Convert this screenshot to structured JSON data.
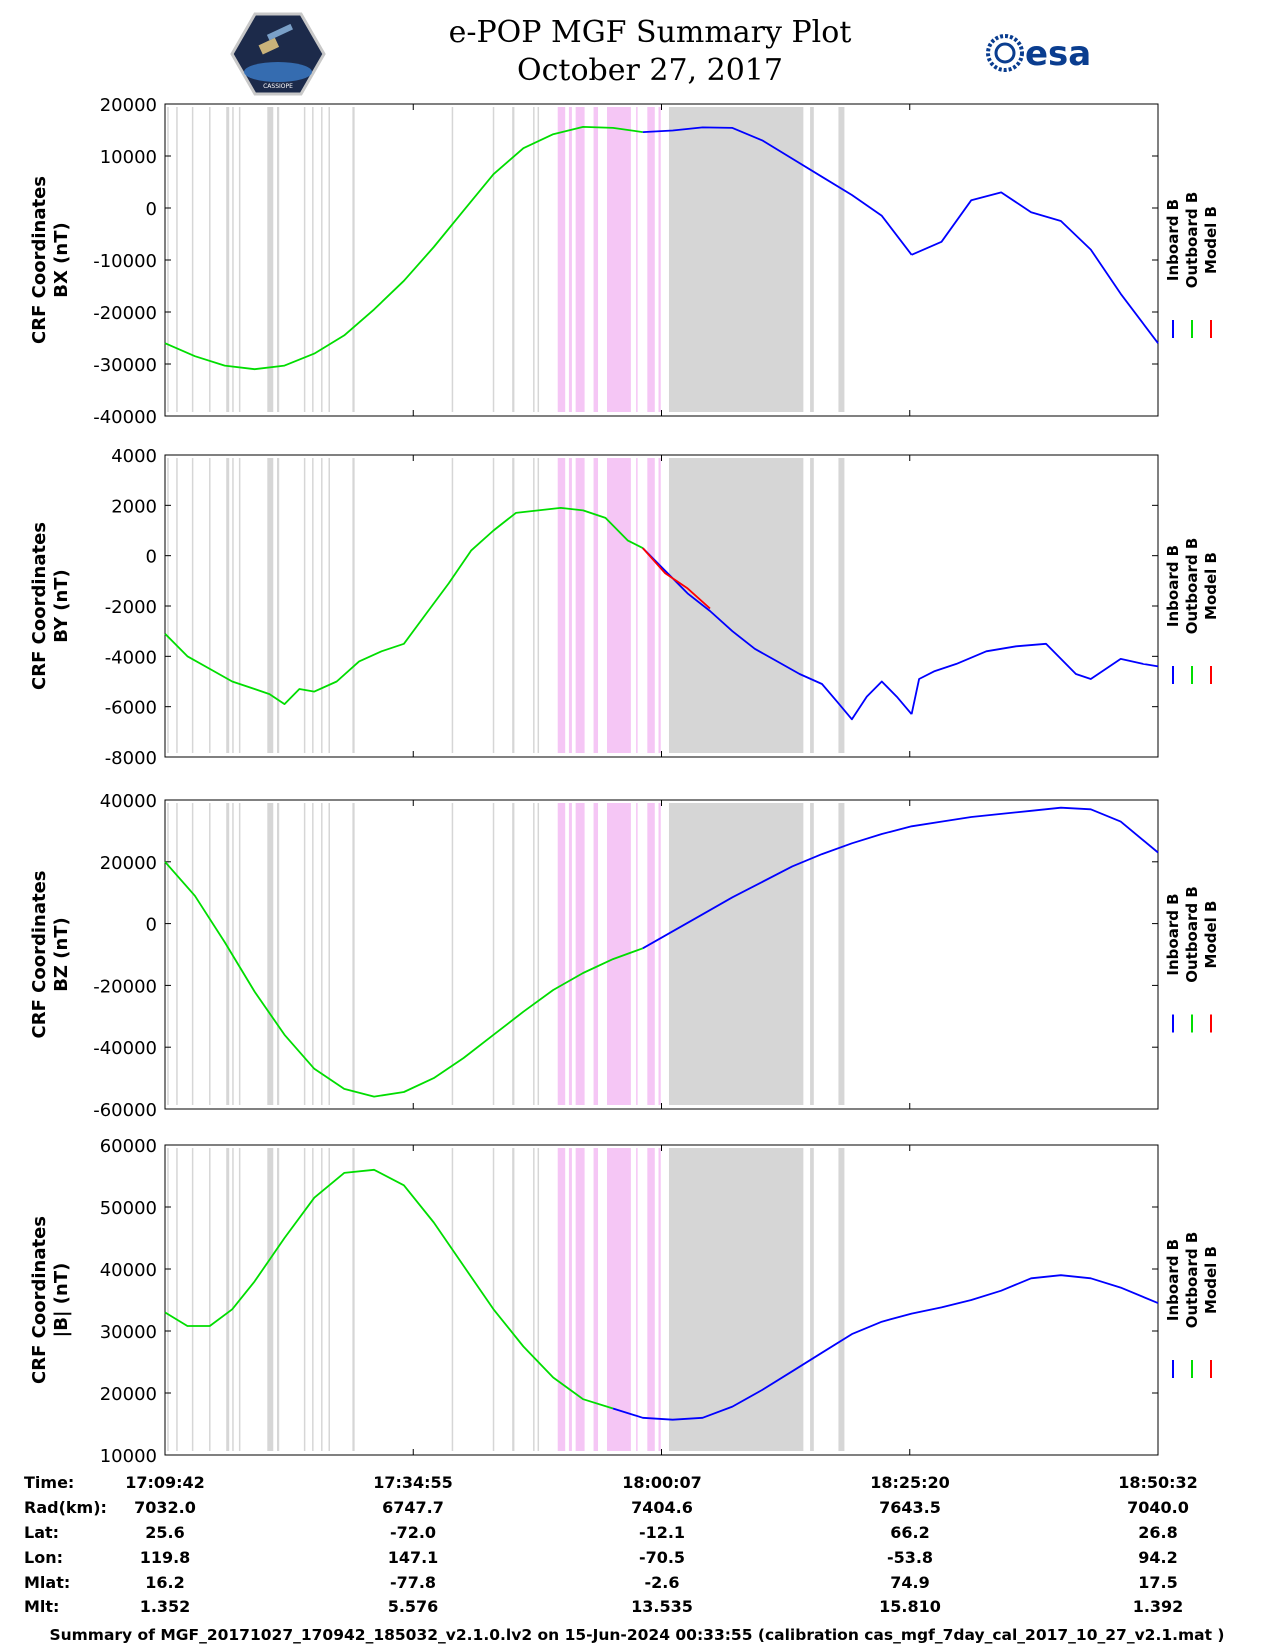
{
  "header": {
    "title": "e-POP MGF Summary Plot",
    "date": "October 27, 2017",
    "left_logo": "cassiope-mission-patch",
    "right_logo_text": "esa",
    "right_logo_color": "#0a3d8f"
  },
  "legend_labels": [
    "Inboard B",
    "Outboard B",
    "Model B"
  ],
  "colors": {
    "inboard": "#0000ff",
    "outboard": "#00dd00",
    "model": "#ff0000",
    "gap_gray": "#d6d6d6",
    "gap_pink": "#f5c6f5",
    "axis": "#000000"
  },
  "chart_data": [
    {
      "type": "line",
      "ylabel_line1": "CRF Coordinates",
      "ylabel_line2": "BX (nT)",
      "ylim": [
        -40000,
        20000
      ],
      "yticks": [
        20000,
        10000,
        0,
        -10000,
        -20000,
        -30000,
        -40000
      ],
      "ytick_labels": [
        "20000",
        "10000",
        "0",
        "-10000",
        "-20000",
        "-30000",
        "-40000"
      ],
      "series": [
        {
          "color": "outboard",
          "x": [
            0,
            4,
            8,
            12,
            16,
            20,
            24,
            28,
            32,
            36,
            40,
            44,
            48,
            52,
            56,
            60,
            64
          ],
          "y": [
            -26000,
            -28500,
            -30300,
            -31000,
            -30300,
            -28000,
            -24500,
            -19500,
            -14000,
            -7500,
            -500,
            6500,
            11500,
            14200,
            15600,
            15400,
            14600
          ]
        },
        {
          "color": "inboard",
          "x": [
            64,
            68,
            72,
            76,
            80,
            84,
            88,
            92,
            96,
            100
          ],
          "y": [
            14600,
            14900,
            15500,
            15400,
            13000,
            9500,
            6000,
            2500,
            -1500,
            -9000
          ]
        },
        {
          "color": "inboard",
          "x": [
            100,
            104,
            108,
            112,
            116,
            120,
            124,
            128,
            133
          ],
          "y": [
            -9000,
            -6500,
            1500,
            3000,
            -800,
            -2500,
            -8000,
            -16500,
            -26000
          ]
        }
      ]
    },
    {
      "type": "line",
      "ylabel_line1": "CRF Coordinates",
      "ylabel_line2": "BY (nT)",
      "ylim": [
        -8000,
        4000
      ],
      "yticks": [
        4000,
        2000,
        0,
        -2000,
        -4000,
        -6000,
        -8000
      ],
      "ytick_labels": [
        "4000",
        "2000",
        "0",
        "-2000",
        "-4000",
        "-6000",
        "-8000"
      ],
      "series": [
        {
          "color": "outboard",
          "x": [
            0,
            3,
            6,
            9,
            12,
            14,
            16,
            18,
            20,
            23,
            26,
            29,
            32,
            35,
            38,
            41,
            44,
            47,
            50,
            53,
            56,
            59,
            62,
            64
          ],
          "y": [
            -3100,
            -4000,
            -4500,
            -5000,
            -5300,
            -5500,
            -5900,
            -5300,
            -5400,
            -5000,
            -4200,
            -3800,
            -3500,
            -2300,
            -1100,
            200,
            1000,
            1700,
            1800,
            1900,
            1800,
            1500,
            600,
            300
          ]
        },
        {
          "color": "inboard",
          "x": [
            64,
            67,
            70,
            73,
            76,
            79,
            82,
            85,
            88,
            90,
            92,
            94,
            96,
            98,
            100
          ],
          "y": [
            300,
            -600,
            -1500,
            -2200,
            -3000,
            -3700,
            -4200,
            -4700,
            -5100,
            -5800,
            -6500,
            -5600,
            -5000,
            -5600,
            -6300
          ]
        },
        {
          "color": "inboard",
          "x": [
            100,
            101,
            103,
            106,
            110,
            114,
            118,
            122,
            124,
            128,
            131,
            133
          ],
          "y": [
            -6300,
            -4900,
            -4600,
            -4300,
            -3800,
            -3600,
            -3500,
            -4700,
            -4900,
            -4100,
            -4300,
            -4400
          ]
        },
        {
          "color": "model",
          "x": [
            64,
            67,
            70,
            73
          ],
          "y": [
            300,
            -700,
            -1300,
            -2100
          ]
        }
      ]
    },
    {
      "type": "line",
      "ylabel_line1": "CRF Coordinates",
      "ylabel_line2": "BZ (nT)",
      "ylim": [
        -60000,
        40000
      ],
      "yticks": [
        40000,
        20000,
        0,
        -20000,
        -40000,
        -60000
      ],
      "ytick_labels": [
        "40000",
        "20000",
        "0",
        "-20000",
        "-40000",
        "-60000"
      ],
      "series": [
        {
          "color": "outboard",
          "x": [
            0,
            4,
            8,
            12,
            16,
            20,
            24,
            28,
            32,
            36,
            40,
            44,
            48,
            52,
            56,
            60,
            64
          ],
          "y": [
            20000,
            9000,
            -6000,
            -22000,
            -36000,
            -47000,
            -53500,
            -56000,
            -54500,
            -50000,
            -43500,
            -36000,
            -28500,
            -21500,
            -16000,
            -11500,
            -8000
          ]
        },
        {
          "color": "inboard",
          "x": [
            64,
            68,
            72,
            76,
            80,
            84,
            88,
            92,
            96,
            100,
            104,
            108,
            112,
            116,
            120,
            124,
            128,
            133
          ],
          "y": [
            -8000,
            -2500,
            3000,
            8500,
            13500,
            18500,
            22500,
            26000,
            29000,
            31500,
            33000,
            34500,
            35500,
            36500,
            37500,
            37000,
            33000,
            23000
          ]
        }
      ]
    },
    {
      "type": "line",
      "ylabel_line1": "CRF Coordinates",
      "ylabel_line2": "|B| (nT)",
      "ylim": [
        10000,
        60000
      ],
      "yticks": [
        60000,
        50000,
        40000,
        30000,
        20000,
        10000
      ],
      "ytick_labels": [
        "60000",
        "50000",
        "40000",
        "30000",
        "20000",
        "10000"
      ],
      "series": [
        {
          "color": "outboard",
          "x": [
            0,
            3,
            6,
            9,
            12,
            16,
            20,
            24,
            28,
            32,
            36,
            40,
            44,
            48,
            52,
            56,
            60
          ],
          "y": [
            33000,
            30800,
            30800,
            33500,
            38000,
            45000,
            51500,
            55500,
            56000,
            53500,
            47500,
            40500,
            33500,
            27500,
            22500,
            19000,
            17500
          ]
        },
        {
          "color": "inboard",
          "x": [
            60,
            64,
            68,
            72,
            76,
            80,
            84,
            88,
            92,
            96,
            100,
            104,
            108,
            112,
            116,
            120,
            124,
            128,
            133
          ],
          "y": [
            17500,
            16000,
            15700,
            16000,
            17800,
            20500,
            23500,
            26500,
            29500,
            31500,
            32800,
            33800,
            35000,
            36500,
            38500,
            39000,
            38500,
            37000,
            34500
          ]
        }
      ]
    }
  ],
  "gap_bands": {
    "gray_x": [
      [
        0.3,
        0.5
      ],
      [
        1.5,
        1.7
      ],
      [
        3.6,
        3.8
      ],
      [
        5.9,
        6.1
      ],
      [
        8.2,
        8.6
      ],
      [
        9.0,
        9.2
      ],
      [
        9.9,
        10.1
      ],
      [
        13.7,
        14.5
      ],
      [
        15.0,
        15.3
      ],
      [
        18.6,
        18.8
      ],
      [
        19.7,
        19.9
      ],
      [
        20.9,
        21.1
      ],
      [
        21.9,
        22.1
      ],
      [
        25.1,
        25.4
      ],
      [
        38.4,
        38.6
      ],
      [
        43.9,
        44.1
      ],
      [
        46.5,
        46.8
      ],
      [
        49.3,
        49.5
      ],
      [
        49.9,
        50.1
      ],
      [
        67.5,
        85.5
      ],
      [
        86.4,
        86.9
      ],
      [
        90.2,
        91.0
      ]
    ],
    "pink_x": [
      [
        52.6,
        53.6
      ],
      [
        54.1,
        54.5
      ],
      [
        55.0,
        56.2
      ],
      [
        57.4,
        58.0
      ],
      [
        59.2,
        62.4
      ],
      [
        63.1,
        63.3
      ],
      [
        64.6,
        65.6
      ],
      [
        66.1,
        66.4
      ]
    ]
  },
  "x_axis": {
    "xlim": [
      0,
      133
    ],
    "tick_positions": [
      0,
      33.25,
      66.5,
      99.75,
      133
    ],
    "row_labels": [
      "Time:",
      "Rad(km):",
      "Lat:",
      "Lon:",
      "Mlat:",
      "Mlt:"
    ],
    "columns": [
      {
        "values": [
          "17:09:42",
          "7032.0",
          "25.6",
          "119.8",
          "16.2",
          "1.352"
        ]
      },
      {
        "values": [
          "17:34:55",
          "6747.7",
          "-72.0",
          "147.1",
          "-77.8",
          "5.576"
        ]
      },
      {
        "values": [
          "18:00:07",
          "7404.6",
          "-12.1",
          "-70.5",
          "-2.6",
          "13.535"
        ]
      },
      {
        "values": [
          "18:25:20",
          "7643.5",
          "66.2",
          "-53.8",
          "74.9",
          "15.810"
        ]
      },
      {
        "values": [
          "18:50:32",
          "7040.0",
          "26.8",
          "94.2",
          "17.5",
          "1.392"
        ]
      }
    ]
  },
  "footer": "Summary of MGF_20171027_170942_185032_v2.1.0.lv2 on 15-Jun-2024 00:33:55 (calibration cas_mgf_7day_cal_2017_10_27_v2.1.mat )"
}
